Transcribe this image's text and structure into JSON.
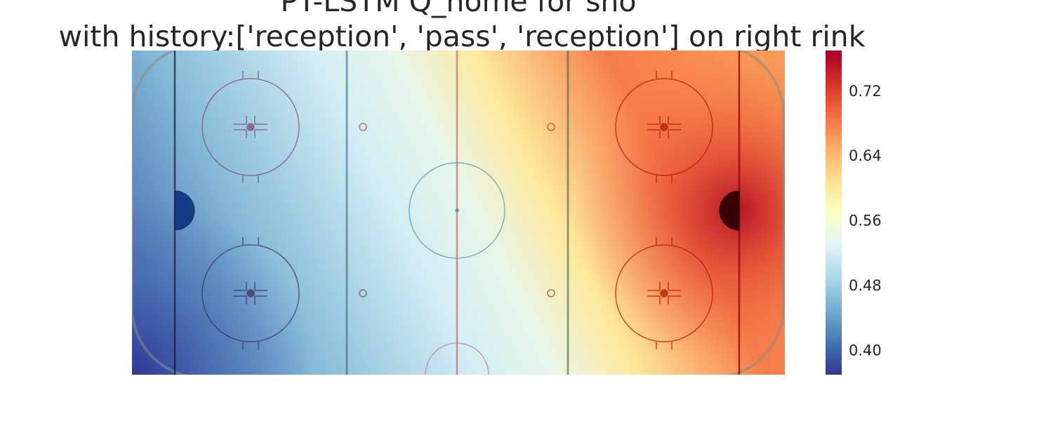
{
  "chart_data": {
    "type": "heatmap",
    "title_lines": [
      "PT-LSTM Q_home for sho",
      "with history:['reception', 'pass', 'reception'] on right rink"
    ],
    "colormap": "RdYlBu_r",
    "colormap_stops": [
      "#313695",
      "#4575b4",
      "#74add1",
      "#abd9e9",
      "#e0f3f8",
      "#ffffbf",
      "#fee090",
      "#fdae61",
      "#f46d43",
      "#d73027",
      "#a50026"
    ],
    "value_range": [
      0.37,
      0.77
    ],
    "colorbar_ticks": [
      0.4,
      0.48,
      0.56,
      0.64,
      0.72
    ],
    "field": {
      "left_edge_value": 0.4,
      "left_bottom_corner_value": 0.37,
      "center_value": 0.55,
      "right_edge_value": 0.68,
      "hotspot_peak_value": 0.76,
      "hotspot_location": "right goal crease"
    },
    "rink_side": "right",
    "history": [
      "reception",
      "pass",
      "reception"
    ],
    "grid": false,
    "legend": "colorbar-right"
  }
}
